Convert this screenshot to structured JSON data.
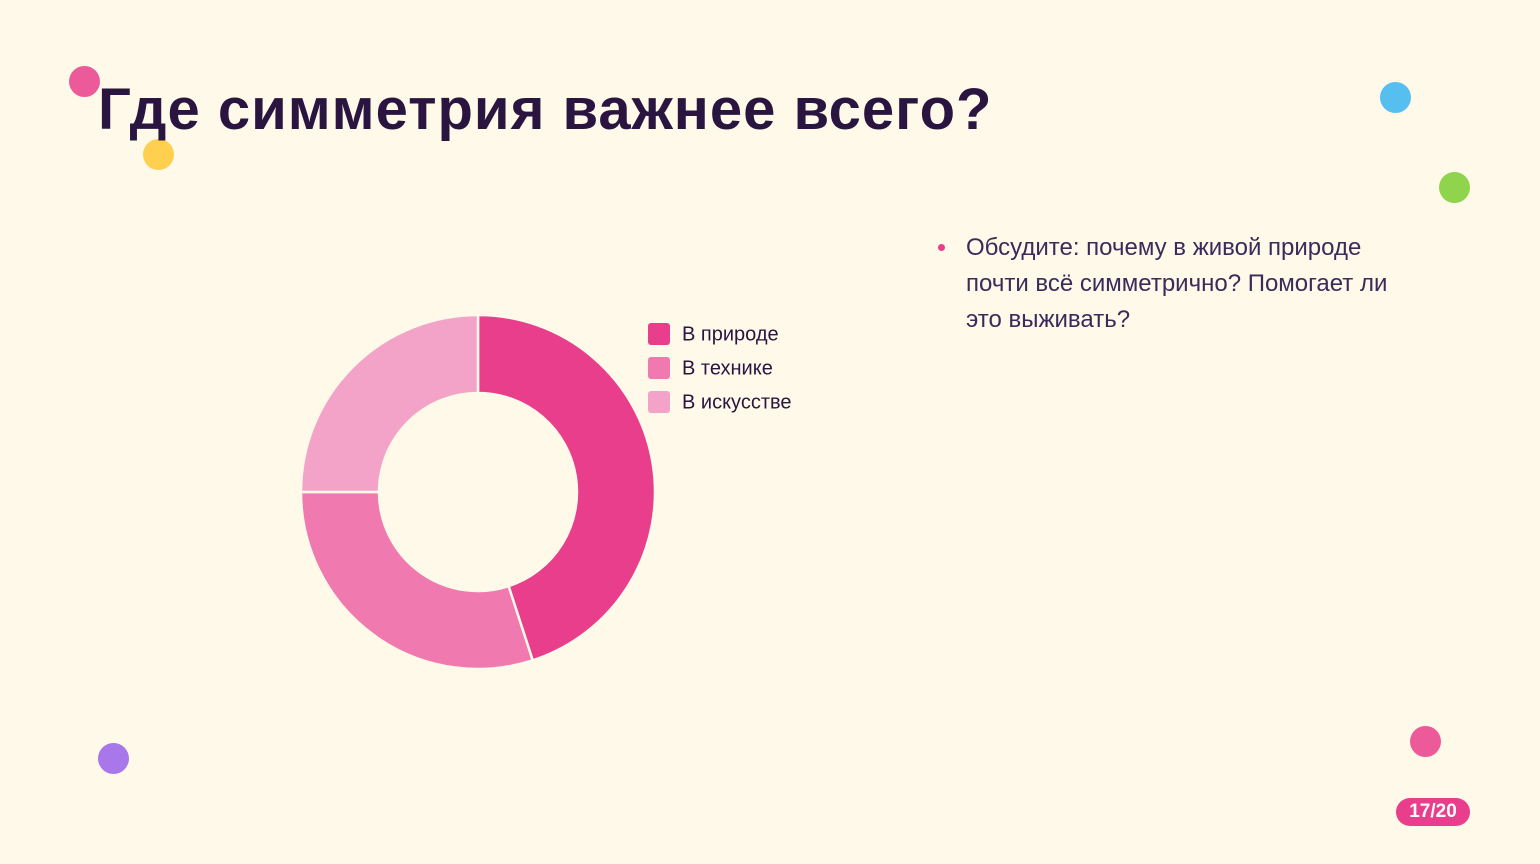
{
  "slide": {
    "title": "Где симметрия важнее всего?",
    "bullets": [
      "Обсудите: почему в живой природе почти всё симметрично? Помогает ли это выживать?"
    ],
    "page": "17/20"
  },
  "chart_data": {
    "type": "pie",
    "donut": true,
    "categories": [
      "В природе",
      "В технике",
      "В искусстве"
    ],
    "values": [
      45,
      30,
      25
    ],
    "colors": [
      "#e83e8c",
      "#f07ab0",
      "#f4a3c8"
    ],
    "legend": "right"
  }
}
